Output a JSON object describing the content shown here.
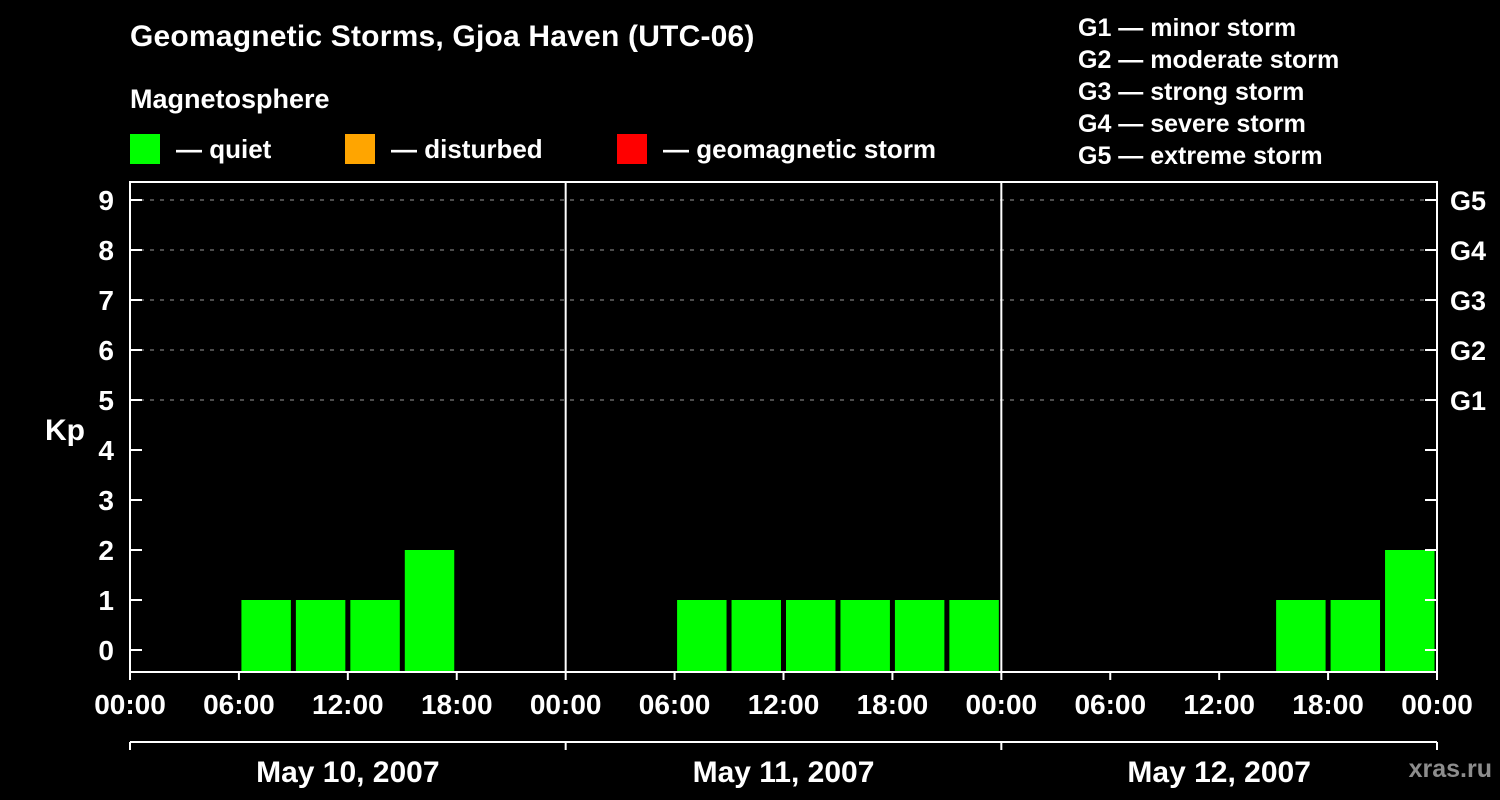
{
  "header": {
    "title": "Geomagnetic Storms, Gjoa Haven (UTC-06)",
    "subtitle": "Magnetosphere"
  },
  "legend": {
    "items": [
      {
        "label": "— quiet",
        "color": "#00ff00"
      },
      {
        "label": "— disturbed",
        "color": "#ffa500"
      },
      {
        "label": "— geomagnetic storm",
        "color": "#ff0000"
      }
    ]
  },
  "storm_scale_legend": {
    "items": [
      "G1 — minor storm",
      "G2 — moderate storm",
      "G3 — strong storm",
      "G4 — severe storm",
      "G5 — extreme storm"
    ]
  },
  "watermark": "xras.ru",
  "chart_data": {
    "type": "bar",
    "title": "Geomagnetic Storms, Gjoa Haven (UTC-06)",
    "subtitle": "Magnetosphere",
    "ylabel": "Kp",
    "ylim": [
      0,
      9
    ],
    "y_ticks": [
      0,
      1,
      2,
      3,
      4,
      5,
      6,
      7,
      8,
      9
    ],
    "grid": {
      "dashed_gridlines_at_kp": [
        5,
        6,
        7,
        8,
        9
      ],
      "color": "#999999"
    },
    "right_axis_labels": [
      {
        "label": "G1",
        "kp": 5
      },
      {
        "label": "G2",
        "kp": 6
      },
      {
        "label": "G3",
        "kp": 7
      },
      {
        "label": "G4",
        "kp": 8
      },
      {
        "label": "G5",
        "kp": 9
      }
    ],
    "bar_color": "#00ff00",
    "interval_hours": 3,
    "time_tick_labels": [
      "00:00",
      "06:00",
      "12:00",
      "18:00"
    ],
    "end_tick_label": "00:00",
    "days": [
      {
        "date": "May 10, 2007",
        "kp_values": [
          0,
          0,
          1,
          1,
          1,
          2,
          0,
          0
        ]
      },
      {
        "date": "May 11, 2007",
        "kp_values": [
          0,
          0,
          1,
          1,
          1,
          1,
          1,
          1
        ]
      },
      {
        "date": "May 12, 2007",
        "kp_values": [
          0,
          0,
          0,
          0,
          0,
          1,
          1,
          2
        ]
      }
    ]
  }
}
